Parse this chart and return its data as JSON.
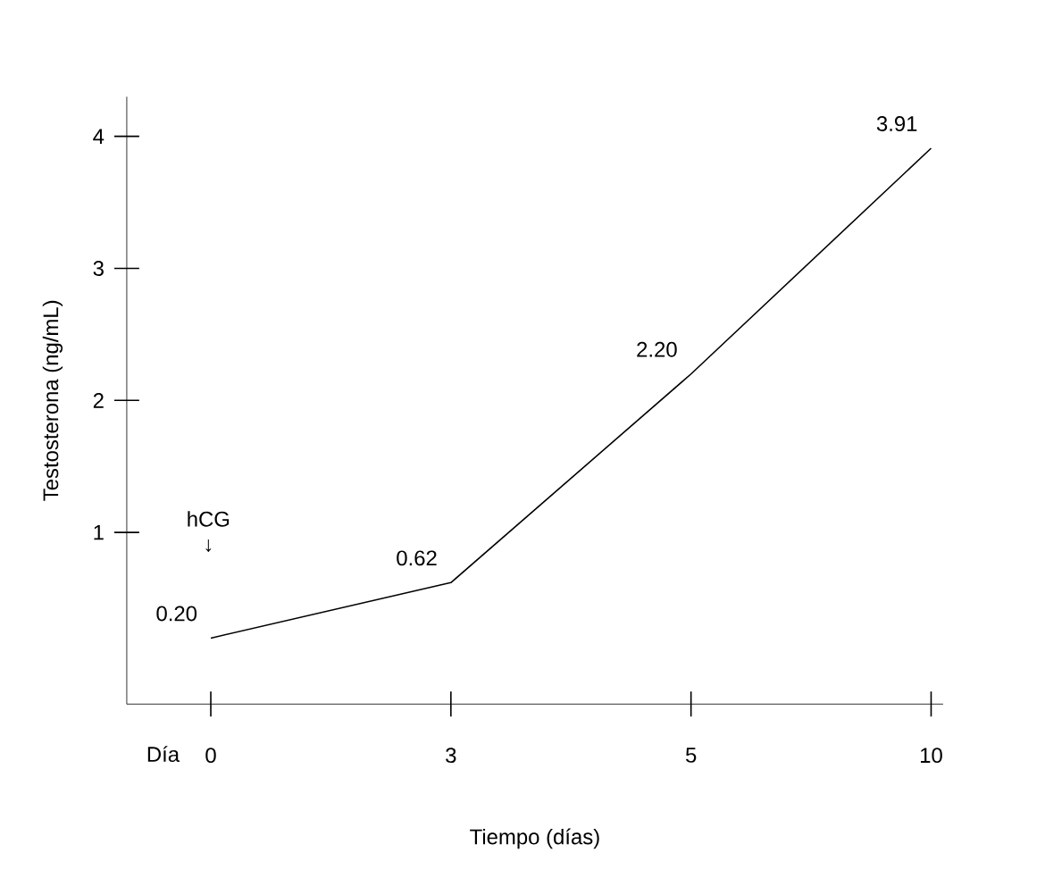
{
  "chart_data": {
    "type": "line",
    "xlabel": "Tiempo (días)",
    "ylabel": "Testosterona (ng/mL)",
    "categories": [
      "0",
      "3",
      "5",
      "10"
    ],
    "values": [
      0.2,
      0.62,
      2.2,
      3.91
    ],
    "color": "#000000",
    "ylim": [
      -0.3,
      4.3
    ],
    "yticks": [
      1,
      2,
      3,
      4
    ],
    "value_labels": [
      "0.20",
      "0.62",
      "2.20",
      "3.91"
    ],
    "marker": "none",
    "line_style": "solid",
    "grid": false,
    "annotations": [
      "Día",
      "hCG ↓"
    ]
  }
}
